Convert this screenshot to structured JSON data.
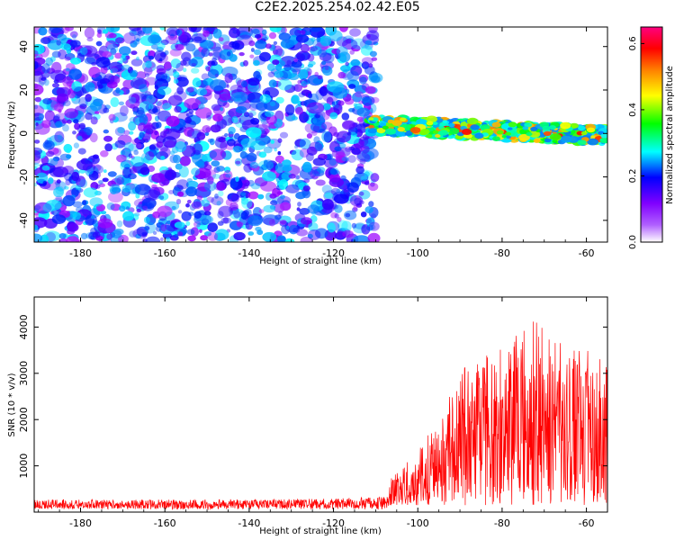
{
  "figure": {
    "title": "C2E2.2025.254.02.42.E05"
  },
  "chart_data": [
    {
      "type": "heatmap",
      "title": "C2E2.2025.254.02.42.E05",
      "xlabel": "Height of straight line (km)",
      "ylabel": "Frequency (Hz)",
      "xlim": [
        -191,
        -55
      ],
      "ylim": [
        -50,
        49
      ],
      "xticks": [
        -180,
        -160,
        -140,
        -120,
        -100,
        -80,
        -60
      ],
      "yticks": [
        -40,
        -20,
        0,
        20,
        40
      ],
      "grid": false,
      "colorbar": {
        "label": "Normalized spectral amplitude",
        "range": [
          0.0,
          0.65
        ],
        "ticks": [
          "0.0",
          "0.2",
          "0.4",
          "0.6"
        ],
        "colors": [
          "#ffffff",
          "#a000ff",
          "#0000ff",
          "#00ffff",
          "#00ff00",
          "#ffff00",
          "#ff8000",
          "#ff0000",
          "#ff0080"
        ]
      },
      "regions": [
        {
          "name": "noise",
          "x_range": [
            -191,
            -110
          ],
          "freq_range": [
            -50,
            49
          ],
          "amplitude_range": [
            0.0,
            0.2
          ]
        },
        {
          "name": "signal band",
          "x_range": [
            -112,
            -55
          ],
          "center_freq_start": 4,
          "center_freq_end": -1,
          "bandwidth_hz": 8,
          "amplitude_range": [
            0.15,
            0.62
          ]
        }
      ]
    },
    {
      "type": "line",
      "xlabel": "Height of straight line (km)",
      "ylabel": "SNR (10 * v/v)",
      "xlim": [
        -191,
        -55
      ],
      "ylim": [
        0,
        4650
      ],
      "xticks": [
        -180,
        -160,
        -140,
        -120,
        -100,
        -80,
        -60
      ],
      "yticks": [
        1000,
        2000,
        3000,
        4000
      ],
      "grid": false,
      "color": "#ff0000",
      "envelope": {
        "x": [
          -191,
          -180,
          -160,
          -140,
          -120,
          -108,
          -104,
          -100,
          -96,
          -92,
          -88,
          -84,
          -80,
          -76,
          -72,
          -68,
          -64,
          -60,
          -56
        ],
        "y": [
          250,
          250,
          250,
          260,
          270,
          320,
          600,
          900,
          1300,
          1900,
          2300,
          2400,
          2500,
          2800,
          3000,
          2700,
          2600,
          2500,
          2300
        ]
      }
    }
  ]
}
